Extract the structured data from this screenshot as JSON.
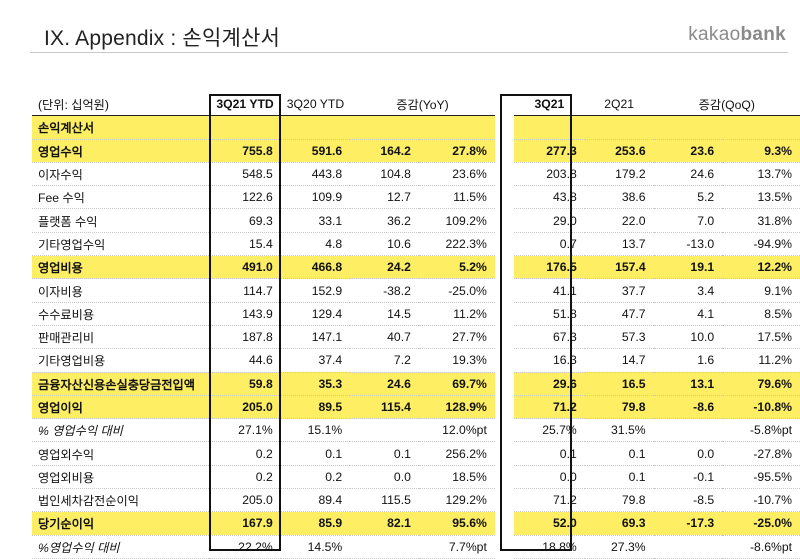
{
  "header": {
    "title": "IX. Appendix : 손익계산서",
    "logo_light": "kakao",
    "logo_bold": "bank"
  },
  "table": {
    "unit_label": "(단위: 십억원)",
    "columns": [
      "3Q21 YTD",
      "3Q20 YTD",
      "증감(YoY)",
      "3Q21",
      "2Q21",
      "증감(QoQ)"
    ],
    "section_label": "손익계산서",
    "rows": [
      {
        "label": "영업수익",
        "cells": [
          "755.8",
          "591.6",
          "164.2",
          "27.8%",
          "277.3",
          "253.6",
          "23.6",
          "9.3%"
        ],
        "style": "hl"
      },
      {
        "label": "이자수익",
        "cells": [
          "548.5",
          "443.8",
          "104.8",
          "23.6%",
          "203.8",
          "179.2",
          "24.6",
          "13.7%"
        ],
        "style": ""
      },
      {
        "label": "Fee 수익",
        "cells": [
          "122.6",
          "109.9",
          "12.7",
          "11.5%",
          "43.8",
          "38.6",
          "5.2",
          "13.5%"
        ],
        "style": ""
      },
      {
        "label": "플랫폼 수익",
        "cells": [
          "69.3",
          "33.1",
          "36.2",
          "109.2%",
          "29.0",
          "22.0",
          "7.0",
          "31.8%"
        ],
        "style": ""
      },
      {
        "label": "기타영업수익",
        "cells": [
          "15.4",
          "4.8",
          "10.6",
          "222.3%",
          "0.7",
          "13.7",
          "-13.0",
          "-94.9%"
        ],
        "style": ""
      },
      {
        "label": "영업비용",
        "cells": [
          "491.0",
          "466.8",
          "24.2",
          "5.2%",
          "176.5",
          "157.4",
          "19.1",
          "12.2%"
        ],
        "style": "hl"
      },
      {
        "label": "이자비용",
        "cells": [
          "114.7",
          "152.9",
          "-38.2",
          "-25.0%",
          "41.1",
          "37.7",
          "3.4",
          "9.1%"
        ],
        "style": ""
      },
      {
        "label": "수수료비용",
        "cells": [
          "143.9",
          "129.4",
          "14.5",
          "11.2%",
          "51.8",
          "47.7",
          "4.1",
          "8.5%"
        ],
        "style": ""
      },
      {
        "label": "판매관리비",
        "cells": [
          "187.8",
          "147.1",
          "40.7",
          "27.7%",
          "67.3",
          "57.3",
          "10.0",
          "17.5%"
        ],
        "style": ""
      },
      {
        "label": "기타영업비용",
        "cells": [
          "44.6",
          "37.4",
          "7.2",
          "19.3%",
          "16.3",
          "14.7",
          "1.6",
          "11.2%"
        ],
        "style": ""
      },
      {
        "label": "금융자산신용손실충당금전입액",
        "cells": [
          "59.8",
          "35.3",
          "24.6",
          "69.7%",
          "29.6",
          "16.5",
          "13.1",
          "79.6%"
        ],
        "style": "hl"
      },
      {
        "label": "영업이익",
        "cells": [
          "205.0",
          "89.5",
          "115.4",
          "128.9%",
          "71.2",
          "79.8",
          "-8.6",
          "-10.8%"
        ],
        "style": "hl"
      },
      {
        "label": "% 영업수익 대비",
        "cells": [
          "27.1%",
          "15.1%",
          "",
          "12.0%pt",
          "25.7%",
          "31.5%",
          "",
          "-5.8%pt"
        ],
        "style": "italic"
      },
      {
        "label": "영업외수익",
        "cells": [
          "0.2",
          "0.1",
          "0.1",
          "256.2%",
          "0.1",
          "0.1",
          "0.0",
          "-27.8%"
        ],
        "style": ""
      },
      {
        "label": "영업외비용",
        "cells": [
          "0.2",
          "0.2",
          "0.0",
          "18.5%",
          "0.0",
          "0.1",
          "-0.1",
          "-95.5%"
        ],
        "style": ""
      },
      {
        "label": "법인세차감전순이익",
        "cells": [
          "205.0",
          "89.4",
          "115.5",
          "129.2%",
          "71.2",
          "79.8",
          "-8.5",
          "-10.7%"
        ],
        "style": ""
      },
      {
        "label": "당기순이익",
        "cells": [
          "167.9",
          "85.9",
          "82.1",
          "95.6%",
          "52.0",
          "69.3",
          "-17.3",
          "-25.0%"
        ],
        "style": "hl"
      },
      {
        "label": "%영업수익 대비",
        "cells": [
          "22.2%",
          "14.5%",
          "",
          "7.7%pt",
          "18.8%",
          "27.3%",
          "",
          "-8.6%pt"
        ],
        "style": "italic"
      }
    ]
  }
}
